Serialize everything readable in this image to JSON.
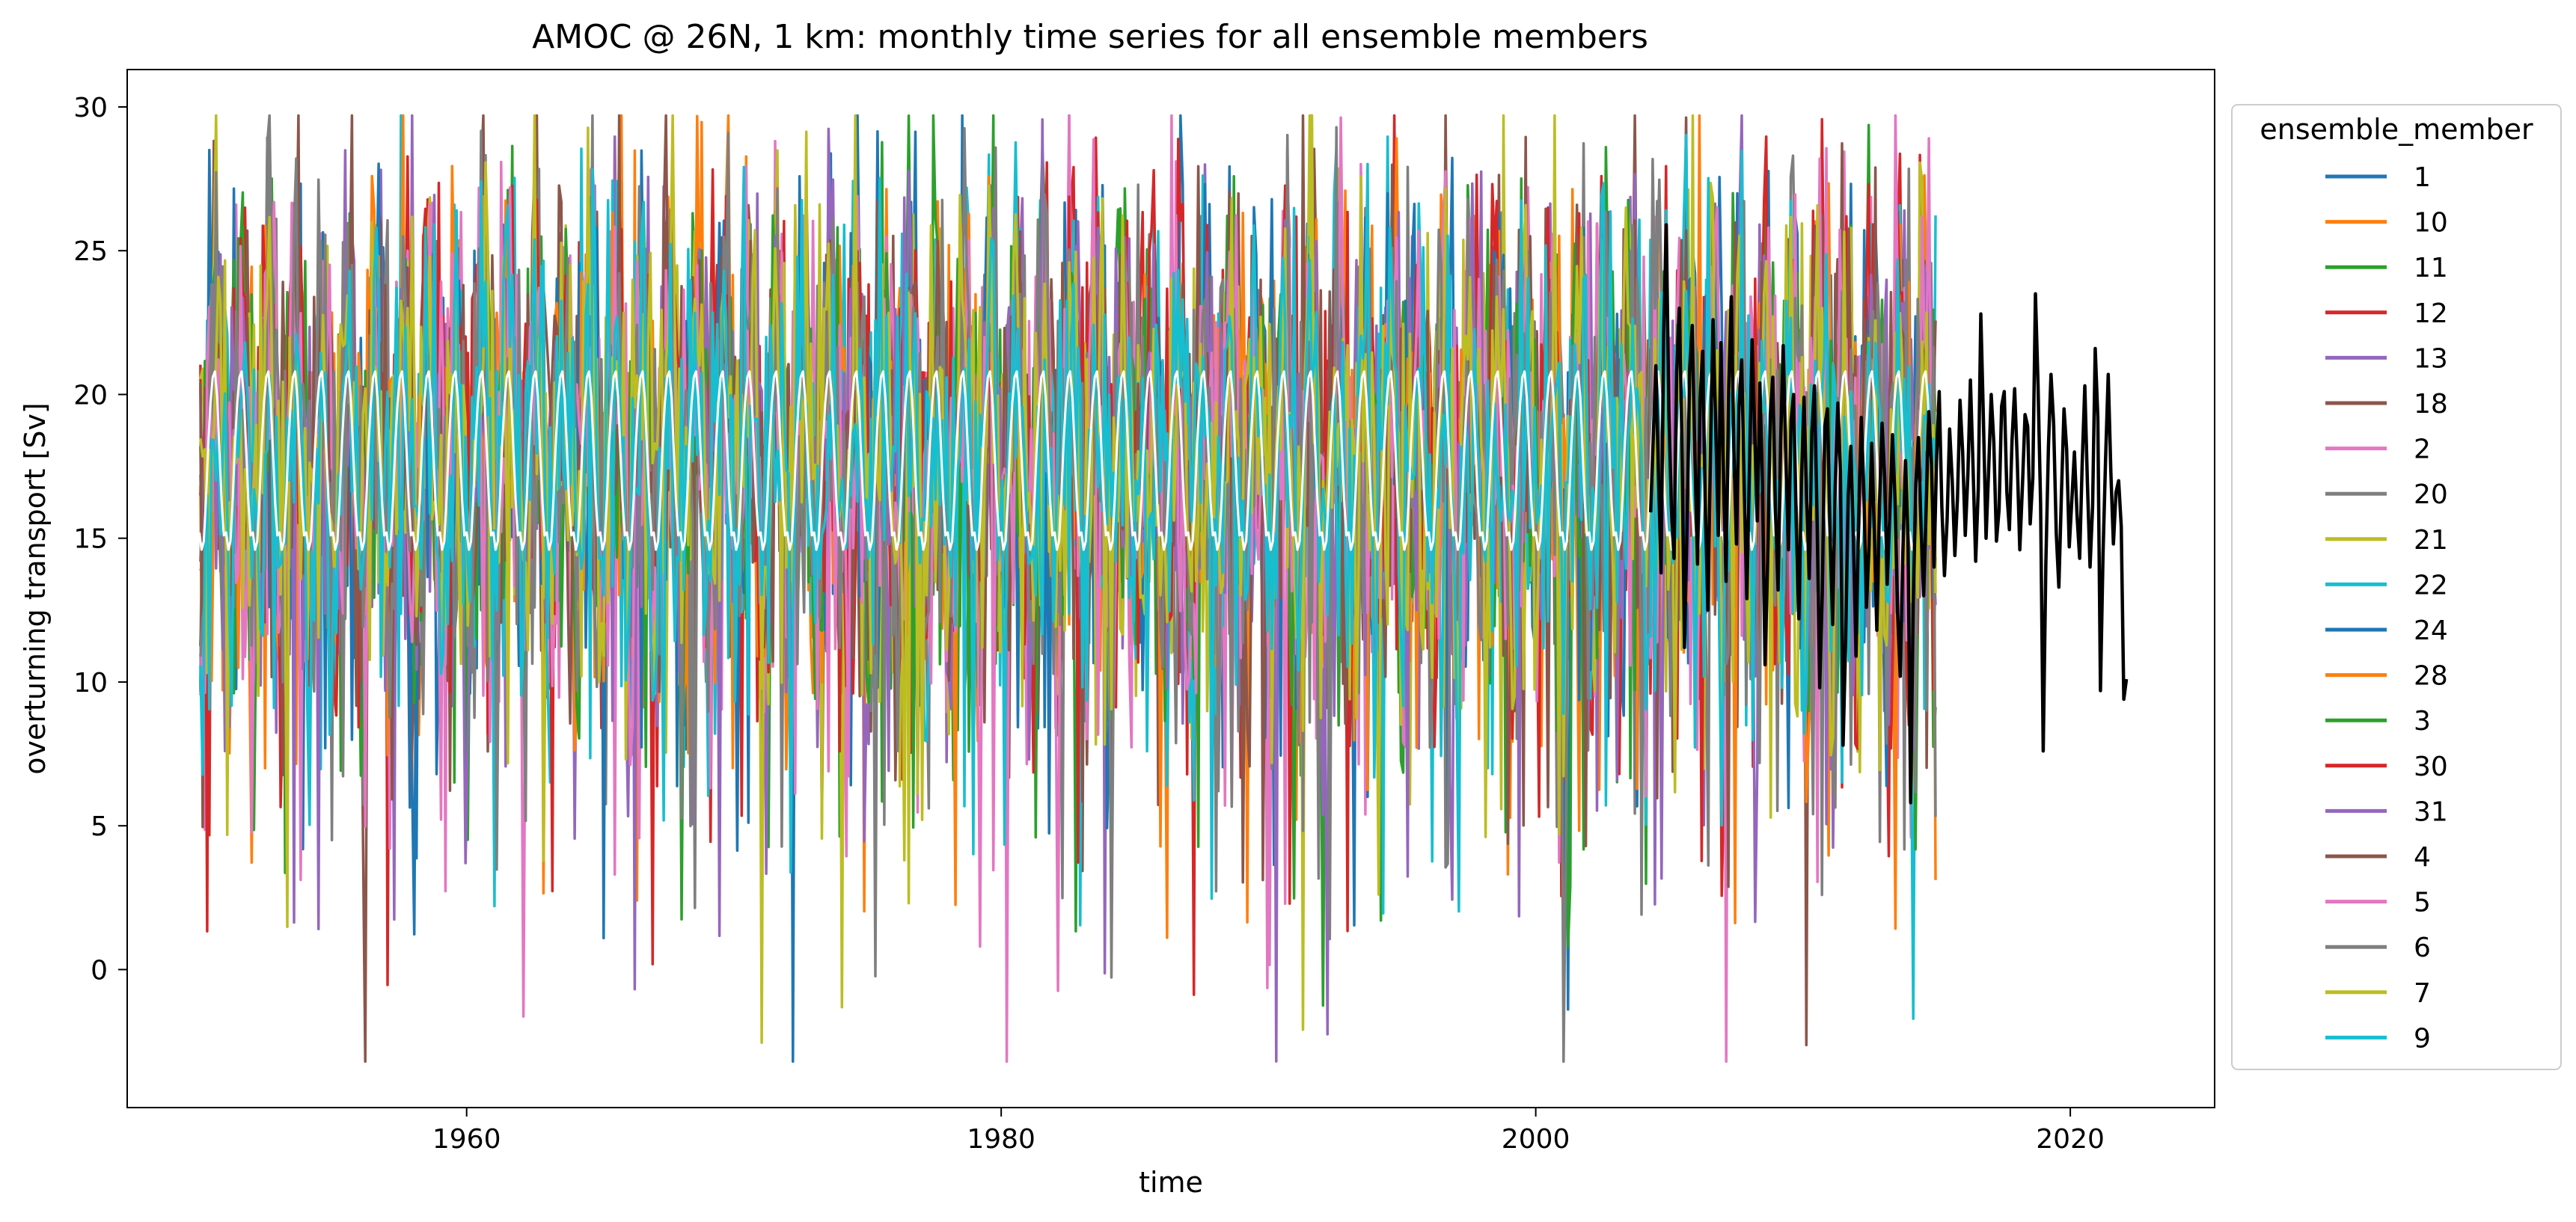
{
  "chart_data": {
    "type": "line",
    "title": "AMOC @ 26N, 1 km: monthly time series for all ensemble members",
    "xlabel": "time",
    "ylabel": "overturning transport  [Sv]",
    "xlim": [
      1947.3,
      2025.4
    ],
    "ylim": [
      -4.8,
      31.3
    ],
    "xticks": [
      1960,
      1980,
      2000,
      2020
    ],
    "yticks": [
      0,
      5,
      10,
      15,
      20,
      25,
      30
    ],
    "grid": false,
    "legend": {
      "title": "ensemble_member",
      "placement": "outside-right"
    },
    "ensemble": {
      "start_year": 1950,
      "end_year": 2015,
      "sampling": "monthly",
      "typical_range": [
        5,
        26
      ],
      "extreme_min": -3.2,
      "extreme_max": 29.7
    },
    "series": [
      {
        "name": "1",
        "color": "#1f77b4",
        "base": 18.0,
        "amp": 3.0,
        "std": 3.5,
        "seed": 11
      },
      {
        "name": "10",
        "color": "#ff7f0e",
        "base": 18.2,
        "amp": 3.1,
        "std": 3.6,
        "seed": 23
      },
      {
        "name": "11",
        "color": "#2ca02c",
        "base": 18.0,
        "amp": 3.0,
        "std": 3.5,
        "seed": 37
      },
      {
        "name": "12",
        "color": "#d62728",
        "base": 17.9,
        "amp": 3.0,
        "std": 3.6,
        "seed": 41
      },
      {
        "name": "13",
        "color": "#9467bd",
        "base": 18.1,
        "amp": 2.9,
        "std": 3.5,
        "seed": 53
      },
      {
        "name": "18",
        "color": "#8c564b",
        "base": 17.8,
        "amp": 3.1,
        "std": 3.6,
        "seed": 67
      },
      {
        "name": "2",
        "color": "#e377c2",
        "base": 17.9,
        "amp": 3.0,
        "std": 3.7,
        "seed": 71
      },
      {
        "name": "20",
        "color": "#7f7f7f",
        "base": 18.0,
        "amp": 3.0,
        "std": 3.6,
        "seed": 83
      },
      {
        "name": "21",
        "color": "#bcbd22",
        "base": 18.1,
        "amp": 3.0,
        "std": 3.7,
        "seed": 97
      },
      {
        "name": "22",
        "color": "#17becf",
        "base": 18.0,
        "amp": 3.1,
        "std": 3.5,
        "seed": 101
      },
      {
        "name": "24",
        "color": "#1f77b4",
        "base": 17.9,
        "amp": 2.9,
        "std": 3.5,
        "seed": 113
      },
      {
        "name": "28",
        "color": "#ff7f0e",
        "base": 18.0,
        "amp": 3.0,
        "std": 3.6,
        "seed": 127
      },
      {
        "name": "3",
        "color": "#2ca02c",
        "base": 18.1,
        "amp": 3.0,
        "std": 3.5,
        "seed": 131
      },
      {
        "name": "30",
        "color": "#d62728",
        "base": 17.9,
        "amp": 3.1,
        "std": 3.6,
        "seed": 149
      },
      {
        "name": "31",
        "color": "#9467bd",
        "base": 18.0,
        "amp": 3.0,
        "std": 3.5,
        "seed": 157
      },
      {
        "name": "4",
        "color": "#8c564b",
        "base": 18.0,
        "amp": 2.9,
        "std": 3.6,
        "seed": 163
      },
      {
        "name": "5",
        "color": "#e377c2",
        "base": 17.9,
        "amp": 3.0,
        "std": 3.6,
        "seed": 179
      },
      {
        "name": "6",
        "color": "#7f7f7f",
        "base": 18.0,
        "amp": 3.0,
        "std": 3.5,
        "seed": 191
      },
      {
        "name": "7",
        "color": "#bcbd22",
        "base": 18.1,
        "amp": 3.1,
        "std": 3.6,
        "seed": 197
      },
      {
        "name": "9",
        "color": "#17becf",
        "base": 18.0,
        "amp": 3.0,
        "std": 3.5,
        "seed": 211
      }
    ],
    "ensemble_climatology": {
      "color": "#ffffff",
      "start_year": 1950,
      "end_year": 2015,
      "mean": 17.6,
      "amplitude": 3.1,
      "peak_month_fraction": 0.62,
      "values_approx": [
        15.2,
        14.6,
        14.9,
        16.4,
        18.3,
        19.7,
        20.6,
        20.8,
        19.9,
        18.1,
        16.3,
        15.1
      ]
    },
    "observations": {
      "color": "#000000",
      "start_year": 2004.3,
      "end_year": 2022.1,
      "values": [
        15.9,
        18.5,
        21.0,
        17.2,
        13.8,
        22.1,
        25.9,
        19.4,
        16.0,
        14.3,
        20.8,
        23.0,
        18.6,
        11.2,
        15.4,
        20.9,
        22.4,
        17.9,
        14.1,
        19.8,
        21.5,
        16.2,
        12.5,
        18.0,
        22.6,
        19.0,
        15.1,
        21.8,
        17.4,
        13.5,
        20.2,
        23.4,
        18.1,
        14.8,
        19.6,
        21.2,
        16.7,
        12.9,
        17.5,
        21.9,
        18.8,
        15.6,
        20.4,
        16.9,
        10.6,
        14.2,
        19.3,
        20.6,
        16.0,
        13.2,
        18.4,
        21.7,
        17.8,
        14.6,
        19.1,
        20.0,
        15.5,
        12.2,
        17.0,
        19.9,
        16.4,
        13.6,
        18.7,
        20.3,
        15.8,
        9.8,
        13.1,
        18.9,
        19.5,
        15.2,
        12.0,
        16.8,
        19.7,
        17.3,
        7.8,
        11.4,
        16.5,
        18.2,
        14.9,
        10.9,
        15.7,
        19.2,
        16.6,
        12.6,
        14.7,
        18.3,
        15.3,
        11.8,
        16.1,
        19.0,
        17.1,
        13.4,
        15.9,
        18.6,
        16.3,
        12.4,
        10.2,
        14.5,
        17.7,
        15.0,
        5.8,
        12.8,
        16.9,
        18.5,
        15.4,
        13.0,
        16.2,
        19.4,
        17.6,
        14.0,
        17.9,
        20.1,
        16.1,
        13.7,
        15.6,
        18.8,
        17.0,
        14.4,
        16.4,
        19.8,
        18.0,
        15.1,
        17.2,
        20.5,
        17.5,
        14.2,
        16.7,
        22.8,
        19.1,
        15.0,
        17.4,
        20.0,
        18.3,
        14.9,
        16.0,
        19.6,
        20.1,
        16.6,
        15.3,
        18.4,
        20.2,
        17.7,
        14.6,
        16.8,
        19.3,
        18.9,
        15.5,
        17.1,
        23.5,
        20.3,
        16.2,
        7.6,
        14.1,
        18.2,
        20.7,
        19.0,
        15.2,
        13.3,
        16.5,
        19.5,
        18.1,
        14.7,
        16.3,
        18.0,
        15.8,
        14.3,
        17.6,
        20.3,
        16.9,
        14.0,
        16.1,
        21.6,
        19.2,
        9.7,
        14.4,
        17.8,
        20.7,
        17.3,
        14.8,
        16.6,
        17.0,
        15.4,
        9.4,
        10.1
      ]
    }
  }
}
